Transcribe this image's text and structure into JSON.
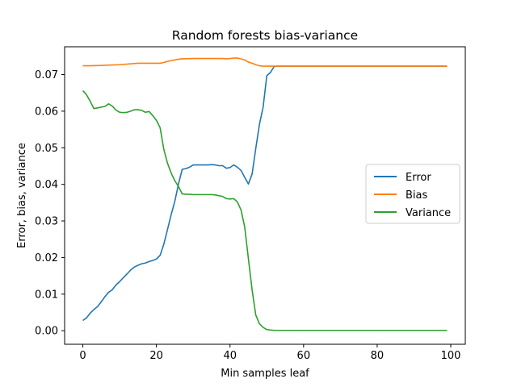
{
  "chart_data": {
    "type": "line",
    "title": "Random forests bias-variance",
    "xlabel": "Min samples leaf",
    "ylabel": "Error, bias, variance",
    "xlim": [
      -4.95,
      103.95
    ],
    "ylim": [
      -0.0037,
      0.0776
    ],
    "x_ticks": [
      0,
      20,
      40,
      60,
      80,
      100
    ],
    "x_tick_labels": [
      "0",
      "20",
      "40",
      "60",
      "80",
      "100"
    ],
    "y_ticks": [
      0.0,
      0.01,
      0.02,
      0.03,
      0.04,
      0.05,
      0.06,
      0.07
    ],
    "y_tick_labels": [
      "0.00",
      "0.01",
      "0.02",
      "0.03",
      "0.04",
      "0.05",
      "0.06",
      "0.07"
    ],
    "grid": false,
    "legend_position": "center-right",
    "series": [
      {
        "name": "Error",
        "color": "#1f77b4",
        "x": [
          0,
          1,
          2,
          3,
          4,
          5,
          6,
          7,
          8,
          9,
          10,
          11,
          12,
          13,
          14,
          15,
          16,
          17,
          18,
          19,
          20,
          21,
          22,
          23,
          24,
          25,
          26,
          27,
          28,
          29,
          30,
          31,
          32,
          33,
          34,
          35,
          36,
          37,
          38,
          39,
          40,
          41,
          42,
          43,
          44,
          45,
          46,
          47,
          48,
          49,
          50,
          51,
          52,
          53,
          55,
          60,
          70,
          80,
          90,
          99
        ],
        "y": [
          0.0028,
          0.0035,
          0.0048,
          0.0058,
          0.0066,
          0.0079,
          0.0093,
          0.0105,
          0.0112,
          0.0125,
          0.0134,
          0.0145,
          0.0155,
          0.0166,
          0.0174,
          0.0179,
          0.0183,
          0.0185,
          0.0189,
          0.0192,
          0.0196,
          0.0206,
          0.0236,
          0.0276,
          0.0317,
          0.0354,
          0.0401,
          0.0441,
          0.0443,
          0.0447,
          0.0453,
          0.0453,
          0.0453,
          0.0453,
          0.0453,
          0.0454,
          0.0453,
          0.0451,
          0.0451,
          0.0444,
          0.0446,
          0.0453,
          0.0447,
          0.0438,
          0.0419,
          0.0401,
          0.0428,
          0.0498,
          0.0564,
          0.0611,
          0.0697,
          0.0706,
          0.0722,
          0.0723,
          0.0723,
          0.0723,
          0.0723,
          0.0723,
          0.0723,
          0.0723
        ]
      },
      {
        "name": "Bias",
        "color": "#ff7f0e",
        "x": [
          0,
          2,
          5,
          10,
          15,
          20,
          21,
          22,
          23,
          24,
          25,
          26,
          27,
          30,
          35,
          38,
          39,
          40,
          41,
          42,
          43,
          44,
          45,
          46,
          47,
          48,
          49,
          50,
          52,
          55,
          60,
          70,
          80,
          90,
          99
        ],
        "y": [
          0.0724,
          0.0724,
          0.0725,
          0.0727,
          0.0731,
          0.0731,
          0.0731,
          0.0733,
          0.0736,
          0.0738,
          0.074,
          0.0742,
          0.0743,
          0.0744,
          0.0744,
          0.0744,
          0.0743,
          0.0744,
          0.0745,
          0.0745,
          0.0743,
          0.074,
          0.0734,
          0.0731,
          0.0727,
          0.0724,
          0.0723,
          0.0723,
          0.0723,
          0.0723,
          0.0723,
          0.0723,
          0.0723,
          0.0723,
          0.0723
        ]
      },
      {
        "name": "Variance",
        "color": "#2ca02c",
        "x": [
          0,
          1,
          2,
          3,
          4,
          5,
          6,
          7,
          8,
          9,
          10,
          11,
          12,
          13,
          14,
          15,
          16,
          17,
          18,
          19,
          20,
          21,
          22,
          23,
          24,
          25,
          26,
          27,
          28,
          29,
          30,
          35,
          36,
          37,
          38,
          39,
          40,
          41,
          42,
          43,
          44,
          45,
          46,
          47,
          48,
          49,
          50,
          51,
          52,
          60,
          70,
          80,
          90,
          99
        ],
        "y": [
          0.0656,
          0.0645,
          0.0627,
          0.0607,
          0.0609,
          0.0611,
          0.0613,
          0.062,
          0.0614,
          0.0603,
          0.0597,
          0.0596,
          0.0597,
          0.06,
          0.0604,
          0.0604,
          0.0602,
          0.0597,
          0.0599,
          0.0588,
          0.0575,
          0.0555,
          0.0496,
          0.0458,
          0.0431,
          0.041,
          0.0394,
          0.0374,
          0.0373,
          0.0373,
          0.0372,
          0.0372,
          0.0371,
          0.0369,
          0.0367,
          0.0361,
          0.036,
          0.0361,
          0.0352,
          0.033,
          0.0283,
          0.0197,
          0.0112,
          0.0043,
          0.0019,
          0.0009,
          0.0003,
          0.0002,
          0.0001,
          0.0001,
          0.0001,
          0.0001,
          0.0001,
          0.0001
        ]
      }
    ]
  }
}
